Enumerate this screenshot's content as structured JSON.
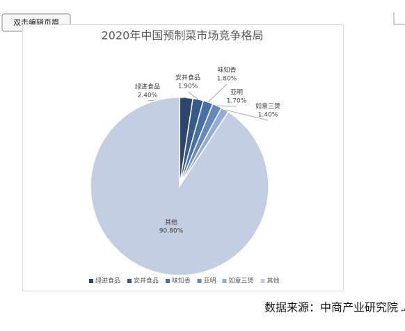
{
  "header_button": "双击编辑页眉",
  "source": "数据来源：中商产业研究院",
  "chart_data": {
    "type": "pie",
    "title": "2020年中国预制菜市场竞争格局",
    "categories": [
      "绿进食品",
      "安井食品",
      "味知香",
      "亚明",
      "如意三煲",
      "其他"
    ],
    "values": [
      2.4,
      1.9,
      1.8,
      1.7,
      1.4,
      90.8
    ],
    "value_labels": [
      "2.40%",
      "1.90%",
      "1.80%",
      "1.70%",
      "1.40%",
      "90.80%"
    ],
    "colors": [
      "#2c4669",
      "#355a88",
      "#4670a6",
      "#6788bd",
      "#93acd4",
      "#c3cee2"
    ],
    "legend": "bottom"
  }
}
